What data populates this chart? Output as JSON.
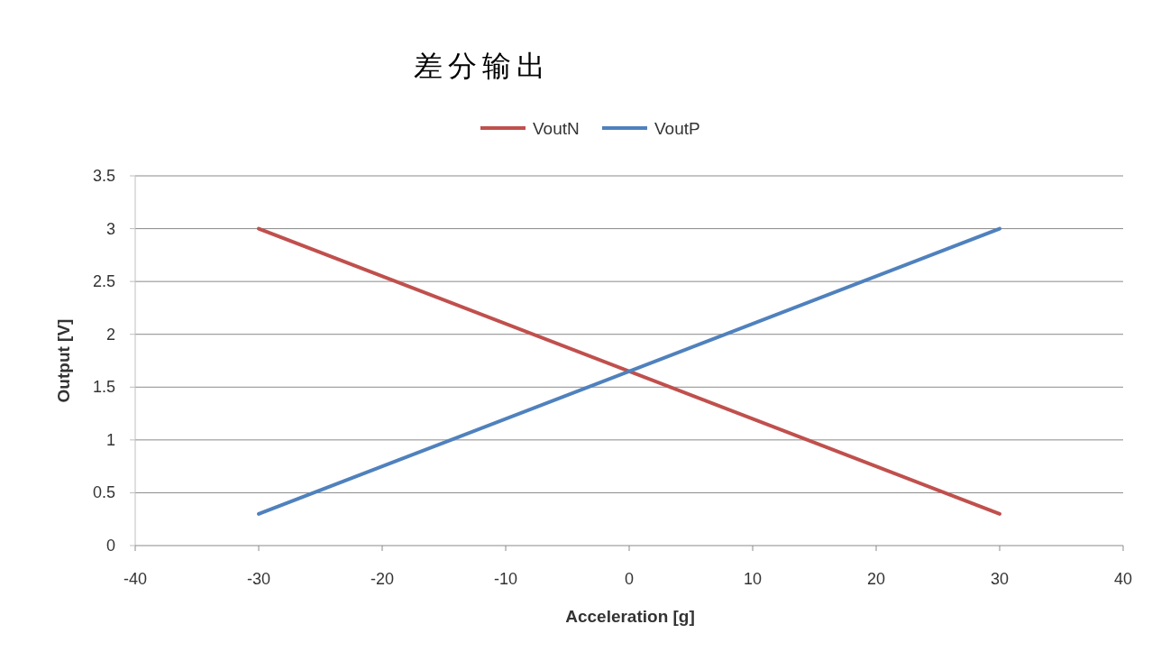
{
  "chart_data": {
    "type": "line",
    "title": "差分输出",
    "xlabel": "Acceleration [g]",
    "ylabel": "Output [V]",
    "x": [
      -30,
      30
    ],
    "series": [
      {
        "name": "VoutN",
        "color": "#c0504d",
        "values": [
          3,
          0.3
        ]
      },
      {
        "name": "VoutP",
        "color": "#4f81bd",
        "values": [
          0.3,
          3
        ]
      }
    ],
    "xlim": [
      -40,
      40
    ],
    "xticks": [
      -40,
      -30,
      -20,
      -10,
      0,
      10,
      20,
      30,
      40
    ],
    "ylim": [
      0,
      3.5
    ],
    "yticks": [
      0,
      0.5,
      1,
      1.5,
      2,
      2.5,
      3,
      3.5
    ],
    "grid": "y",
    "legend": "top",
    "marker": "none",
    "line_style": "solid"
  }
}
